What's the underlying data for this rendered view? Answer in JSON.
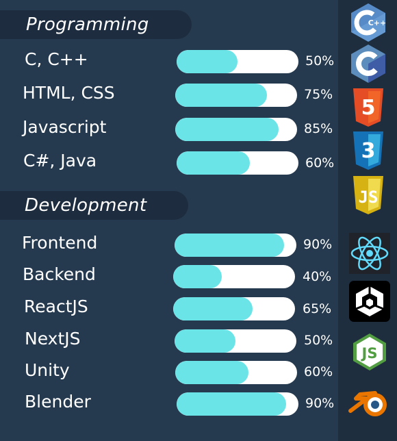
{
  "sections": [
    {
      "title": "Programming",
      "skills": [
        {
          "label": "C, C++",
          "percent": "50%",
          "level": 0.5
        },
        {
          "label": "HTML, CSS",
          "percent": "75%",
          "level": 0.75
        },
        {
          "label": "Javascript",
          "percent": "85%",
          "level": 0.85
        },
        {
          "label": "C#, Java",
          "percent": "60%",
          "level": 0.6
        }
      ]
    },
    {
      "title": "Development",
      "skills": [
        {
          "label": "Frontend",
          "percent": "90%",
          "level": 0.9
        },
        {
          "label": "Backend",
          "percent": "40%",
          "level": 0.4
        },
        {
          "label": "ReactJS",
          "percent": "65%",
          "level": 0.65
        },
        {
          "label": "NextJS",
          "percent": "50%",
          "level": 0.5
        },
        {
          "label": "Unity",
          "percent": "60%",
          "level": 0.6
        },
        {
          "label": "Blender",
          "percent": "90%",
          "level": 0.9
        }
      ]
    }
  ],
  "icons": [
    {
      "name": "cpp-logo-icon",
      "text": "C++",
      "color": "#659ad2"
    },
    {
      "name": "c-logo-icon",
      "text": "C",
      "color": "#5c8dbc"
    },
    {
      "name": "html5-logo-icon",
      "text": "5",
      "color": "#e44d26"
    },
    {
      "name": "css3-logo-icon",
      "text": "3",
      "color": "#1572b6"
    },
    {
      "name": "js-logo-icon",
      "text": "JS",
      "color": "#e6c229"
    },
    {
      "name": "react-logo-icon",
      "color": "#61dafb"
    },
    {
      "name": "unity-logo-icon",
      "color": "#000000"
    },
    {
      "name": "nodejs-logo-icon",
      "text": "JS",
      "color": "#539e43"
    },
    {
      "name": "blender-logo-icon",
      "color": "#ea7600"
    }
  ],
  "colors": {
    "background": "#253a4e",
    "header_bg": "#1d2d3f",
    "bar_track": "#ffffff",
    "bar_fill": "#6be4e8",
    "icon_column": "#1e2e3e"
  }
}
